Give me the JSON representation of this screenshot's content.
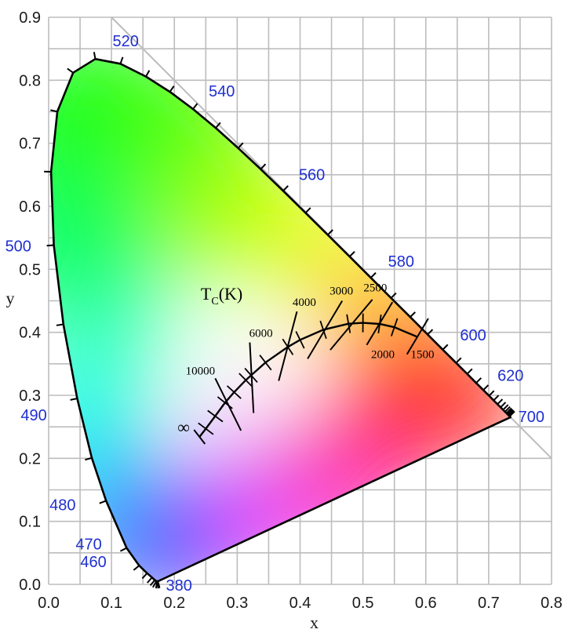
{
  "chart_data": {
    "type": "scatter",
    "title": "",
    "xlabel": "x",
    "ylabel": "y",
    "xlim": [
      0.0,
      0.8
    ],
    "ylim": [
      0.0,
      0.9
    ],
    "grid": true,
    "x_ticks": [
      "0.0",
      "0.1",
      "0.2",
      "0.3",
      "0.4",
      "0.5",
      "0.6",
      "0.7",
      "0.8"
    ],
    "y_ticks": [
      "0.0",
      "0.1",
      "0.2",
      "0.3",
      "0.4",
      "0.5",
      "0.6",
      "0.7",
      "0.8",
      "0.9"
    ],
    "spectral_locus": [
      [
        0.1741,
        0.005
      ],
      [
        0.1738,
        0.0049
      ],
      [
        0.1733,
        0.0048
      ],
      [
        0.1726,
        0.0048
      ],
      [
        0.1714,
        0.0051
      ],
      [
        0.1689,
        0.0069
      ],
      [
        0.1644,
        0.0109
      ],
      [
        0.1566,
        0.0177
      ],
      [
        0.144,
        0.0297
      ],
      [
        0.1241,
        0.0578
      ],
      [
        0.0913,
        0.1327
      ],
      [
        0.0687,
        0.2007
      ],
      [
        0.0454,
        0.295
      ],
      [
        0.0235,
        0.4127
      ],
      [
        0.0082,
        0.5384
      ],
      [
        0.0039,
        0.6548
      ],
      [
        0.0139,
        0.7502
      ],
      [
        0.0389,
        0.812
      ],
      [
        0.0743,
        0.8338
      ],
      [
        0.1142,
        0.8262
      ],
      [
        0.1547,
        0.8059
      ],
      [
        0.1929,
        0.7816
      ],
      [
        0.2296,
        0.7543
      ],
      [
        0.2658,
        0.7243
      ],
      [
        0.3016,
        0.6923
      ],
      [
        0.3373,
        0.6589
      ],
      [
        0.3731,
        0.6245
      ],
      [
        0.4087,
        0.5896
      ],
      [
        0.4441,
        0.5547
      ],
      [
        0.4788,
        0.5202
      ],
      [
        0.5125,
        0.4866
      ],
      [
        0.5448,
        0.4544
      ],
      [
        0.5752,
        0.4242
      ],
      [
        0.6029,
        0.3965
      ],
      [
        0.627,
        0.3725
      ],
      [
        0.6482,
        0.3514
      ],
      [
        0.6658,
        0.334
      ],
      [
        0.6801,
        0.3197
      ],
      [
        0.6915,
        0.3083
      ],
      [
        0.7006,
        0.2993
      ],
      [
        0.7079,
        0.292
      ],
      [
        0.714,
        0.2859
      ],
      [
        0.719,
        0.2809
      ],
      [
        0.723,
        0.277
      ],
      [
        0.726,
        0.274
      ],
      [
        0.7283,
        0.2717
      ],
      [
        0.73,
        0.27
      ],
      [
        0.7311,
        0.2689
      ],
      [
        0.732,
        0.268
      ],
      [
        0.7334,
        0.2666
      ],
      [
        0.7347,
        0.2653
      ]
    ],
    "wavelength_labels": [
      {
        "text": "380",
        "nm": 380,
        "x": 0.1741,
        "y": 0.005
      },
      {
        "text": "460",
        "nm": 460,
        "x": 0.144,
        "y": 0.0297
      },
      {
        "text": "470",
        "nm": 470,
        "x": 0.1241,
        "y": 0.0578
      },
      {
        "text": "480",
        "nm": 480,
        "x": 0.0913,
        "y": 0.1327
      },
      {
        "text": "490",
        "nm": 490,
        "x": 0.0454,
        "y": 0.295
      },
      {
        "text": "500",
        "nm": 500,
        "x": 0.0082,
        "y": 0.5384
      },
      {
        "text": "520",
        "nm": 520,
        "x": 0.0743,
        "y": 0.8338
      },
      {
        "text": "540",
        "nm": 540,
        "x": 0.2296,
        "y": 0.7543
      },
      {
        "text": "560",
        "nm": 560,
        "x": 0.3731,
        "y": 0.6245
      },
      {
        "text": "580",
        "nm": 580,
        "x": 0.5125,
        "y": 0.4866
      },
      {
        "text": "600",
        "nm": 600,
        "x": 0.627,
        "y": 0.3725
      },
      {
        "text": "620",
        "nm": 620,
        "x": 0.6915,
        "y": 0.3083
      },
      {
        "text": "700",
        "nm": 700,
        "x": 0.7347,
        "y": 0.2653
      }
    ],
    "planckian_locus": [
      [
        0.24,
        0.234
      ],
      [
        0.25,
        0.247
      ],
      [
        0.265,
        0.267
      ],
      [
        0.2806,
        0.2883
      ],
      [
        0.295,
        0.305
      ],
      [
        0.3136,
        0.3242
      ],
      [
        0.3221,
        0.3318
      ],
      [
        0.345,
        0.352
      ],
      [
        0.3805,
        0.3768
      ],
      [
        0.4,
        0.388
      ],
      [
        0.4369,
        0.4041
      ],
      [
        0.477,
        0.4137
      ],
      [
        0.5,
        0.415
      ],
      [
        0.5267,
        0.4133
      ],
      [
        0.55,
        0.408
      ],
      [
        0.5857,
        0.3931
      ]
    ],
    "isotherms": [
      {
        "label": "10000",
        "K": 10000,
        "x1": 0.265,
        "y1": 0.327,
        "x2": 0.306,
        "y2": 0.244
      },
      {
        "label": "6000",
        "K": 6000,
        "x1": 0.32,
        "y1": 0.384,
        "x2": 0.326,
        "y2": 0.272
      },
      {
        "label": "4000",
        "K": 4000,
        "x1": 0.395,
        "y1": 0.433,
        "x2": 0.366,
        "y2": 0.323
      },
      {
        "label": "3000",
        "K": 3000,
        "x1": 0.467,
        "y1": 0.45,
        "x2": 0.412,
        "y2": 0.358
      },
      {
        "label": "2500",
        "K": 2500,
        "x1": 0.515,
        "y1": 0.452,
        "x2": 0.448,
        "y2": 0.372
      },
      {
        "label": "2000",
        "K": 2000,
        "x1": 0.547,
        "y1": 0.448,
        "x2": 0.506,
        "y2": 0.38
      },
      {
        "label": "1500",
        "K": 1500,
        "x1": 0.604,
        "y1": 0.422,
        "x2": 0.57,
        "y2": 0.365
      }
    ],
    "temperature_labels": [
      {
        "text": "10000",
        "x": 0.218,
        "y": 0.333
      },
      {
        "text": "6000",
        "x": 0.319,
        "y": 0.393
      },
      {
        "text": "4000",
        "x": 0.388,
        "y": 0.442
      },
      {
        "text": "3000",
        "x": 0.447,
        "y": 0.46
      },
      {
        "text": "2500",
        "x": 0.501,
        "y": 0.465
      },
      {
        "text": "2000",
        "x": 0.513,
        "y": 0.359
      },
      {
        "text": "1500",
        "x": 0.576,
        "y": 0.359
      }
    ],
    "infinity_label": {
      "text": "∞",
      "x": 0.205,
      "y": 0.24
    },
    "tc_title": {
      "main": "T",
      "sub": "C",
      "unit": "(K)",
      "x": 0.242,
      "y": 0.452
    }
  }
}
